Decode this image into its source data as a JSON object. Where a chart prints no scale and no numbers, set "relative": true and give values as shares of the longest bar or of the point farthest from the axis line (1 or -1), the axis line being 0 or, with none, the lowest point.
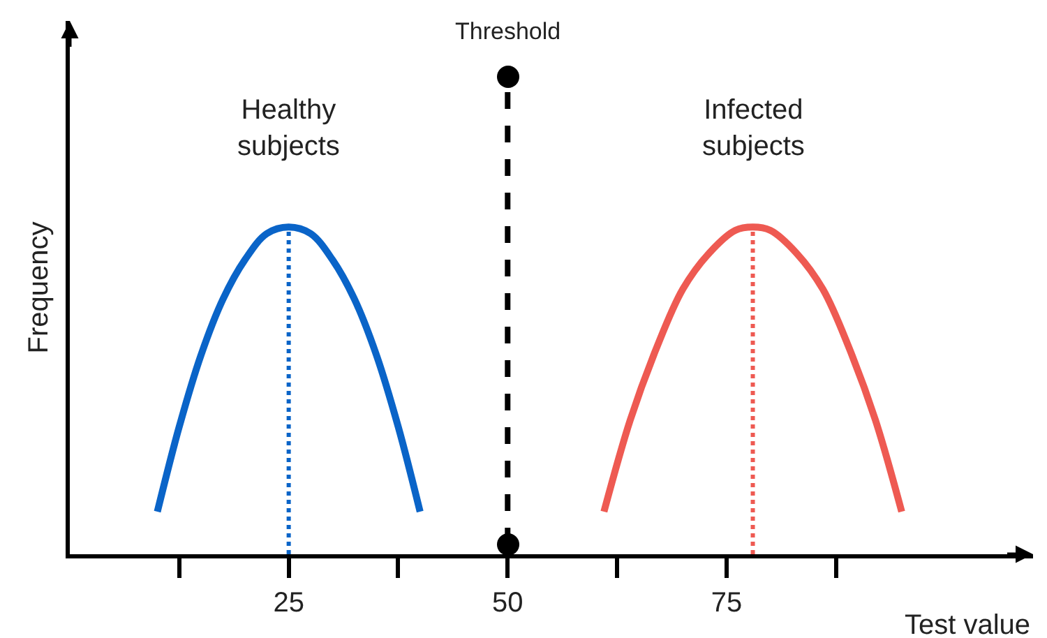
{
  "chart_data": {
    "type": "line",
    "relative": true,
    "xlabel": "Test value",
    "ylabel": "Frequency",
    "xlim": [
      0,
      110
    ],
    "xticks": [
      {
        "value": 12.5,
        "label": null
      },
      25,
      {
        "value": 37.5,
        "label": null
      },
      50,
      {
        "value": 62.5,
        "label": null
      },
      75,
      {
        "value": 87.5,
        "label": null
      }
    ],
    "grid": false,
    "marker": "none",
    "line_style": "solid",
    "series": [
      {
        "color": "#0a64c8",
        "x": [
          10,
          12.5,
          15,
          17.5,
          20,
          22.5,
          25,
          27.5,
          30,
          32.5,
          35,
          37.5,
          40
        ],
        "values": [
          0.13,
          0.39,
          0.61,
          0.78,
          0.9,
          0.98,
          1,
          0.98,
          0.9,
          0.78,
          0.61,
          0.39,
          0.13
        ]
      },
      {
        "color": "#ee5a52",
        "x": [
          61,
          64,
          67,
          70,
          73,
          76,
          78,
          80,
          83,
          86,
          89,
          92,
          95
        ],
        "values": [
          0.13,
          0.41,
          0.63,
          0.81,
          0.92,
          0.99,
          1,
          0.99,
          0.92,
          0.81,
          0.63,
          0.41,
          0.13
        ]
      }
    ],
    "ref_lines": [
      {
        "axis": "x",
        "value": 50,
        "label": "Threshold",
        "color": "#000000",
        "line_style": "dashed"
      },
      {
        "axis": "x",
        "value": 25,
        "label": null,
        "color": "#0a64c8",
        "line_style": "dotted"
      },
      {
        "axis": "x",
        "value": 78,
        "label": null,
        "color": "#ee5a52",
        "line_style": "dotted"
      }
    ],
    "annotations": [
      "Healthy\nsubjects",
      "Infected\nsubjects"
    ]
  }
}
